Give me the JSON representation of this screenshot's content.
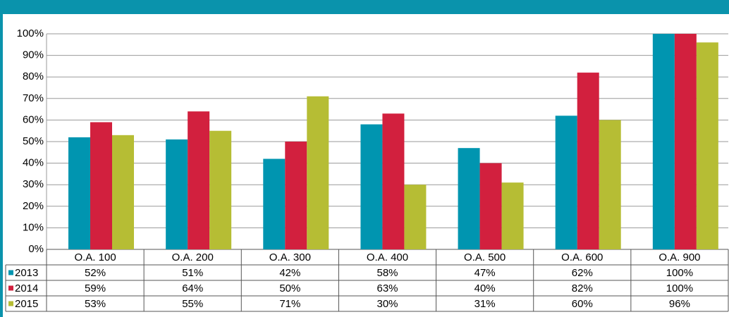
{
  "chart_data": {
    "type": "bar",
    "categories": [
      "O.A. 100",
      "O.A. 200",
      "O.A. 300",
      "O.A. 400",
      "O.A. 500",
      "O.A. 600",
      "O.A. 900"
    ],
    "series": [
      {
        "name": "2013",
        "color": "#0095b0",
        "values": [
          52,
          51,
          42,
          58,
          47,
          62,
          100
        ],
        "value_labels": [
          "52%",
          "51%",
          "42%",
          "58%",
          "47%",
          "62%",
          "100%"
        ]
      },
      {
        "name": "2014",
        "color": "#d2203e",
        "values": [
          59,
          64,
          50,
          63,
          40,
          82,
          100
        ],
        "value_labels": [
          "59%",
          "64%",
          "50%",
          "63%",
          "40%",
          "82%",
          "100%"
        ]
      },
      {
        "name": "2015",
        "color": "#b6bd34",
        "values": [
          53,
          55,
          71,
          30,
          31,
          60,
          96
        ],
        "value_labels": [
          "53%",
          "55%",
          "71%",
          "30%",
          "31%",
          "60%",
          "96%"
        ]
      }
    ],
    "ylim": [
      0,
      100
    ],
    "yticks": [
      {
        "value": 0,
        "label": "0%"
      },
      {
        "value": 10,
        "label": "10%"
      },
      {
        "value": 20,
        "label": "20%"
      },
      {
        "value": 30,
        "label": "30%"
      },
      {
        "value": 40,
        "label": "40%"
      },
      {
        "value": 50,
        "label": "50%"
      },
      {
        "value": 60,
        "label": "60%"
      },
      {
        "value": 70,
        "label": "70%"
      },
      {
        "value": 80,
        "label": "80%"
      },
      {
        "value": 90,
        "label": "90%"
      },
      {
        "value": 100,
        "label": "100%"
      }
    ],
    "grid": true
  }
}
